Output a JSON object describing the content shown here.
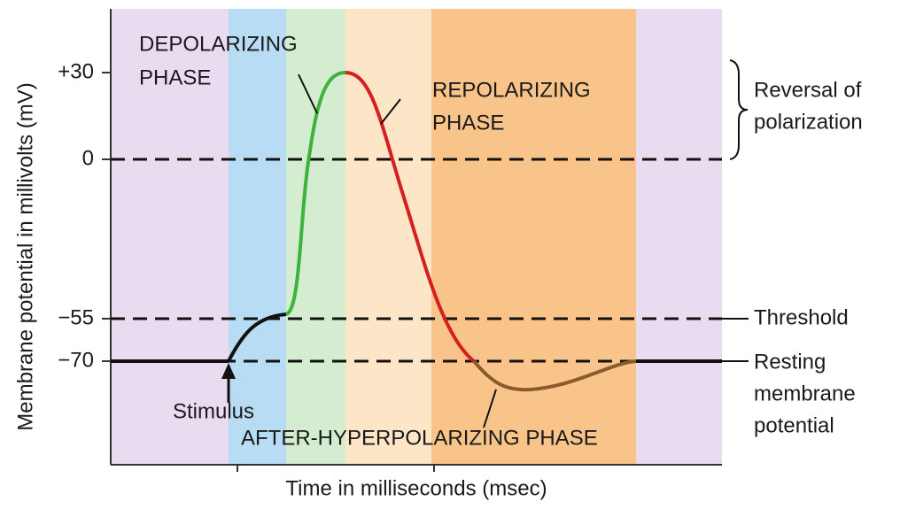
{
  "y_axis": {
    "title": "Membrane potential in millivolts (mV)",
    "ticks": [
      "+30",
      "0",
      "−55",
      "−70"
    ]
  },
  "x_axis": {
    "title": "Time in milliseconds (msec)"
  },
  "phases": {
    "depolarizing": [
      "DEPOLARIZING",
      "PHASE"
    ],
    "repolarizing": [
      "REPOLARIZING",
      "PHASE"
    ],
    "after_hyperpolarizing": "AFTER-HYPERPOLARIZING PHASE"
  },
  "stimulus": "Stimulus",
  "annotations": {
    "reversal": [
      "Reversal of",
      "polarization"
    ],
    "threshold": "Threshold",
    "resting": [
      "Resting",
      "membrane",
      "potential"
    ]
  }
}
